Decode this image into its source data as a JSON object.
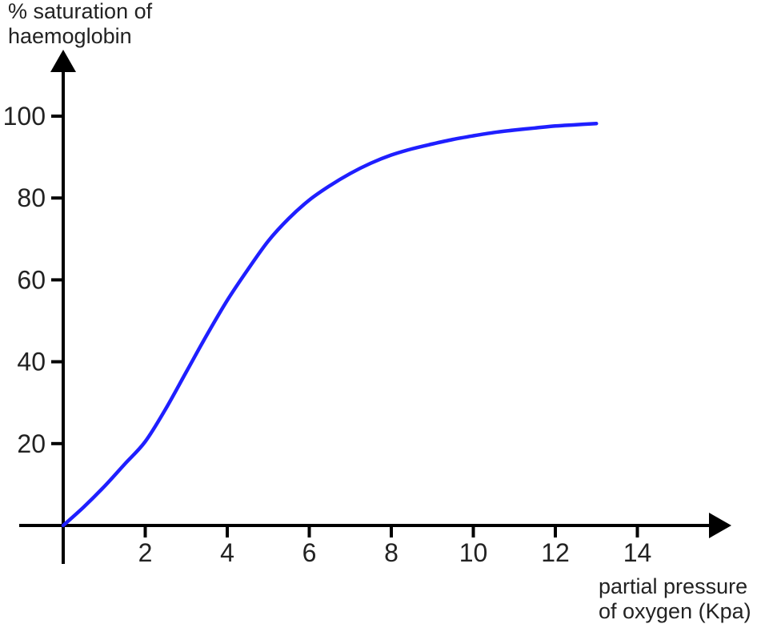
{
  "chart_data": {
    "type": "line",
    "title": "",
    "ylabel": [
      "% saturation of",
      "haemoglobin"
    ],
    "xlabel": [
      "partial pressure",
      "of oxygen (Kpa)"
    ],
    "xlim": [
      0,
      16
    ],
    "ylim": [
      0,
      110
    ],
    "x_ticks": [
      "2",
      "4",
      "6",
      "8",
      "10",
      "12",
      "14"
    ],
    "y_ticks": [
      "20",
      "40",
      "60",
      "80",
      "100"
    ],
    "grid": false,
    "legend": "none",
    "series": [
      {
        "color": "#1f1fff",
        "x": [
          0,
          0.5,
          1,
          1.5,
          2,
          2.5,
          3,
          3.5,
          4,
          4.5,
          5,
          5.5,
          6,
          6.5,
          7,
          7.5,
          8,
          8.5,
          9,
          9.5,
          10,
          10.5,
          11,
          11.5,
          12,
          12.5,
          13
        ],
        "y": [
          0,
          4.5,
          9.5,
          15,
          20.5,
          28.5,
          37.5,
          46.5,
          55,
          62.5,
          69.5,
          75,
          79.5,
          83,
          86,
          88.5,
          90.5,
          92,
          93.2,
          94.3,
          95.2,
          96,
          96.6,
          97.1,
          97.6,
          97.9,
          98.2
        ]
      }
    ]
  }
}
